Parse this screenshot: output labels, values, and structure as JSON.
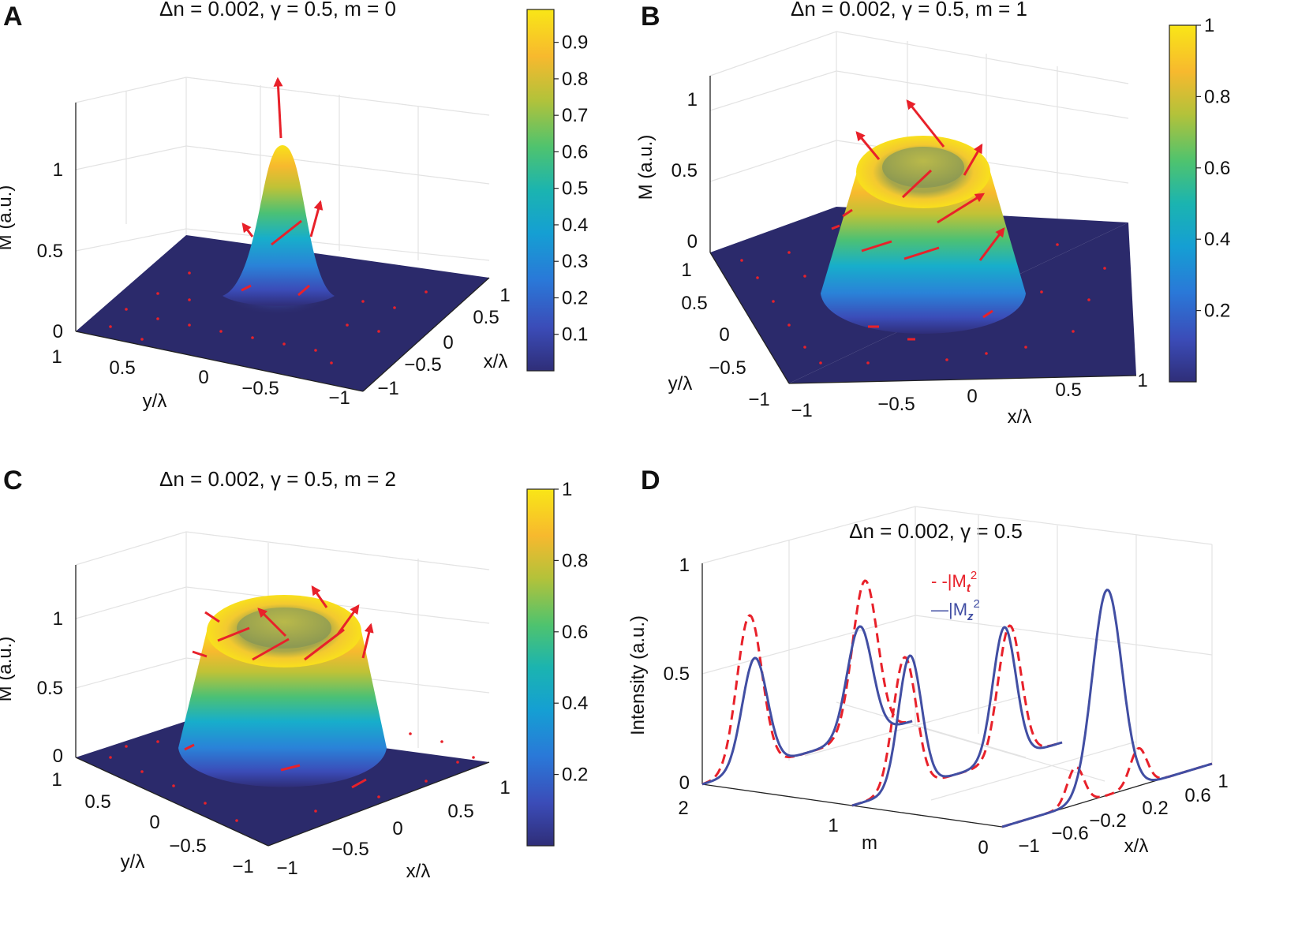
{
  "figure": {
    "panels": {
      "A": {
        "label": "A",
        "title_prefix": "Δn = 0.002, γ = 0.5, m = ",
        "m": "0",
        "z_label": "M (a.u.)",
        "x_label": "x/λ",
        "y_label": "y/λ"
      },
      "B": {
        "label": "B",
        "title_prefix": "Δn = 0.002, γ = 0.5, m = ",
        "m": "1",
        "z_label": "M (a.u.)",
        "x_label": "x/λ",
        "y_label": "y/λ"
      },
      "C": {
        "label": "C",
        "title_prefix": "Δn = 0.002, γ = 0.5, m = ",
        "m": "2",
        "z_label": "M (a.u.)",
        "x_label": "x/λ",
        "y_label": "y/λ"
      },
      "D": {
        "label": "D",
        "title": "Δn = 0.002, γ = 0.5",
        "z_label": "Intensity (a.u.)",
        "x_label": "x/λ",
        "m_label": "m",
        "legend_mt": "- -|M",
        "legend_mt_sub": "t",
        "legend_mz": "—|M",
        "legend_mz_sub": "z",
        "legend_sup": "2"
      }
    }
  },
  "colors": {
    "red": "#e8212a",
    "blue": "#414ea3",
    "floor": "#2b2a6b",
    "cmap_stops": [
      "#3e26a8",
      "#4358f0",
      "#2d87f7",
      "#1cacdc",
      "#21bfaf",
      "#67cc5c",
      "#c1c133",
      "#fcc133",
      "#f9f714"
    ]
  },
  "chart_data": [
    {
      "panel": "A",
      "type": "surface3d",
      "title": "Δn = 0.002, γ = 0.5, m = 0",
      "x_ticks": [
        "1",
        "0.5",
        "0",
        "−0.5",
        "−1"
      ],
      "y_ticks": [
        "1",
        "0.5",
        "0",
        "−0.5",
        "−1"
      ],
      "z_ticks": [
        "0",
        "0.5",
        "1"
      ],
      "zlim": [
        0,
        1.4
      ],
      "colorbar_ticks": [
        "0.1",
        "0.2",
        "0.3",
        "0.4",
        "0.5",
        "0.6",
        "0.7",
        "0.8",
        "0.9"
      ],
      "colorbar_values": [
        0.1,
        0.2,
        0.3,
        0.4,
        0.5,
        0.6,
        0.7,
        0.8,
        0.9
      ],
      "colorbar_range": [
        0,
        0.99
      ],
      "profile": "gaussian peak, max ≈ 1.15 at center"
    },
    {
      "panel": "B",
      "type": "surface3d",
      "title": "Δn = 0.002, γ = 0.5, m = 1",
      "x_ticks": [
        "−1",
        "−0.5",
        "0",
        "0.5",
        "1"
      ],
      "y_ticks": [
        "1",
        "0.5",
        "0",
        "−0.5",
        "−1"
      ],
      "z_ticks": [
        "0",
        "0.5",
        "1"
      ],
      "zlim": [
        0,
        1.3
      ],
      "colorbar_ticks": [
        "0.2",
        "0.4",
        "0.6",
        "0.8",
        "1"
      ],
      "colorbar_values": [
        0.2,
        0.4,
        0.6,
        0.8,
        1.0
      ],
      "colorbar_range": [
        0,
        1
      ],
      "profile": "ring (donut), height ≈ 0.9"
    },
    {
      "panel": "C",
      "type": "surface3d",
      "title": "Δn = 0.002, γ = 0.5, m = 2",
      "x_ticks": [
        "−1",
        "−0.5",
        "0",
        "0.5",
        "1"
      ],
      "y_ticks": [
        "1",
        "0.5",
        "0",
        "−0.5",
        "−1"
      ],
      "z_ticks": [
        "0",
        "0.5",
        "1"
      ],
      "zlim": [
        0,
        1.4
      ],
      "colorbar_ticks": [
        "0.2",
        "0.4",
        "0.6",
        "0.8",
        "1"
      ],
      "colorbar_values": [
        0.2,
        0.4,
        0.6,
        0.8,
        1.0
      ],
      "colorbar_range": [
        0,
        1
      ],
      "profile": "ring (donut), height ≈ 0.95"
    },
    {
      "panel": "D",
      "type": "line3d",
      "title": "Δn = 0.002, γ = 0.5",
      "x_ticks": [
        "−1",
        "−0.6",
        "−0.2",
        "0.2",
        "0.6",
        "1"
      ],
      "m_ticks": [
        "2",
        "1",
        "0"
      ],
      "z_ticks": [
        "0",
        "0.5",
        "1"
      ],
      "xlim": [
        -1,
        1
      ],
      "zlim": [
        0,
        1
      ],
      "series": [
        {
          "name": "|Mt|²",
          "style": "dashed",
          "color": "red",
          "curves": [
            {
              "m": 2,
              "peaks": [
                {
                  "x": -0.55,
                  "amp": 0.7,
                  "w": 0.12
                },
                {
                  "x": 0.55,
                  "amp": 0.7,
                  "w": 0.12
                }
              ]
            },
            {
              "m": 1,
              "peaks": [
                {
                  "x": -0.5,
                  "amp": 0.6,
                  "w": 0.11
                },
                {
                  "x": 0.5,
                  "amp": 0.6,
                  "w": 0.11
                }
              ]
            },
            {
              "m": 0,
              "peaks": [
                {
                  "x": -0.3,
                  "amp": 0.17,
                  "w": 0.08
                },
                {
                  "x": 0.3,
                  "amp": 0.17,
                  "w": 0.08
                }
              ]
            }
          ]
        },
        {
          "name": "|Mz|²",
          "style": "solid",
          "color": "blue",
          "curves": [
            {
              "m": 2,
              "peaks": [
                {
                  "x": -0.5,
                  "amp": 0.5,
                  "w": 0.12
                },
                {
                  "x": 0.5,
                  "amp": 0.5,
                  "w": 0.12
                }
              ]
            },
            {
              "m": 1,
              "peaks": [
                {
                  "x": -0.45,
                  "amp": 0.6,
                  "w": 0.11
                },
                {
                  "x": 0.45,
                  "amp": 0.6,
                  "w": 0.11
                }
              ]
            },
            {
              "m": 0,
              "peaks": [
                {
                  "x": 0.0,
                  "amp": 0.93,
                  "w": 0.14
                }
              ]
            }
          ]
        }
      ]
    }
  ]
}
